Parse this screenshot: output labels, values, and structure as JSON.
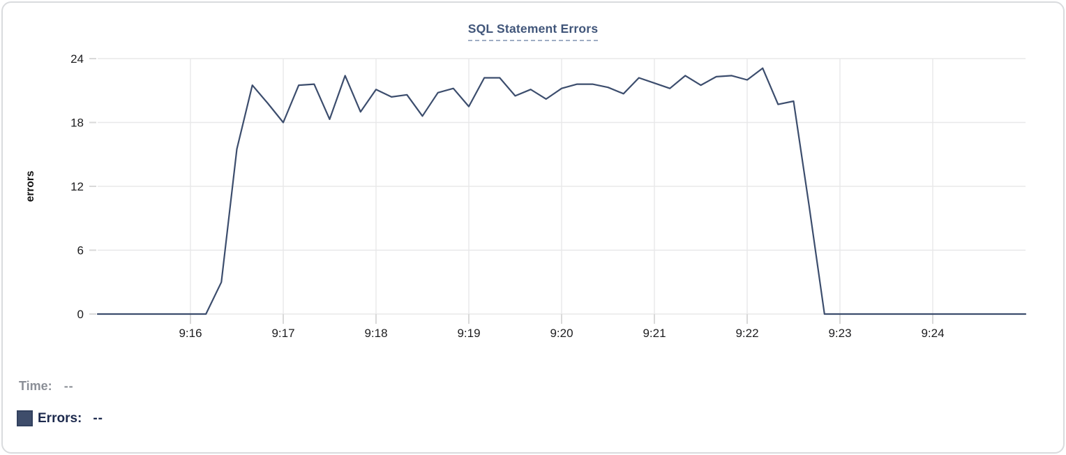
{
  "chart_data": {
    "type": "line",
    "title": "SQL Statement Errors",
    "xlabel": "",
    "ylabel": "errors",
    "series_name": "Errors",
    "x_start": "9:15:00",
    "x_end": "9:25:00",
    "sample_interval_seconds": 10,
    "x_tick_labels": [
      "9:16",
      "9:17",
      "9:18",
      "9:19",
      "9:20",
      "9:21",
      "9:22",
      "9:23",
      "9:24"
    ],
    "y_ticks": [
      0,
      6,
      12,
      18,
      24
    ],
    "ylim": [
      0,
      24
    ],
    "grid": true,
    "legend_position": "bottom-left",
    "line_color": "#3c4d6d",
    "grid_color": "#e8e8e9",
    "tick_color": "#d9d9d9",
    "axis_text_color": "#1c1c1e",
    "values": [
      0,
      0,
      0,
      0,
      0,
      0,
      0,
      0,
      3,
      15.5,
      21.5,
      19.8,
      18,
      21.5,
      21.6,
      18.3,
      22.4,
      19,
      21.1,
      20.4,
      20.6,
      18.6,
      20.8,
      21.2,
      19.5,
      22.2,
      22.2,
      20.5,
      21.1,
      20.2,
      21.2,
      21.6,
      21.6,
      21.3,
      20.7,
      22.2,
      21.7,
      21.2,
      22.4,
      21.5,
      22.3,
      22.4,
      22,
      23.1,
      19.7,
      20,
      10.2,
      0,
      0,
      0,
      0,
      0,
      0,
      0,
      0,
      0,
      0,
      0,
      0,
      0,
      0
    ]
  },
  "readout": {
    "time_label": "Time:",
    "time_value": "--",
    "errors_label": "Errors:",
    "errors_value": "--",
    "swatch_color": "#3e4d6b"
  },
  "colors": {
    "title": "#41567a",
    "title_underline": "#9fadc4",
    "card_border": "#d9dbde",
    "time_text": "#8b8f97",
    "errors_text": "#1d2a4d"
  }
}
